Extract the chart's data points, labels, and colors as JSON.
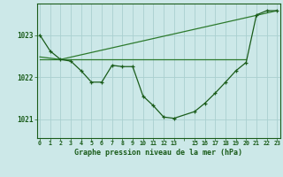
{
  "bg_color": "#cce8e8",
  "grid_color": "#aad0d0",
  "line_color": "#1a5c1a",
  "line_color2": "#2d7a2d",
  "xlabel": "Graphe pression niveau de la mer (hPa)",
  "yticks": [
    1021,
    1022,
    1023
  ],
  "xtick_labels": [
    "0",
    "1",
    "2",
    "3",
    "4",
    "5",
    "6",
    "7",
    "8",
    "9",
    "10",
    "11",
    "12",
    "13",
    "",
    "15",
    "16",
    "17",
    "18",
    "19",
    "20",
    "21",
    "22",
    "23"
  ],
  "xtick_positions": [
    0,
    1,
    2,
    3,
    4,
    5,
    6,
    7,
    8,
    9,
    10,
    11,
    12,
    13,
    14,
    15,
    16,
    17,
    18,
    19,
    20,
    21,
    22,
    23
  ],
  "xlim": [
    -0.3,
    23.3
  ],
  "ylim": [
    1020.55,
    1023.75
  ],
  "series1_x": [
    0,
    1,
    2,
    3,
    4,
    5,
    6,
    7,
    8,
    9,
    10,
    11,
    12,
    13,
    15,
    16,
    17,
    18,
    19,
    20,
    21,
    22,
    23
  ],
  "series1_y": [
    1023.0,
    1022.62,
    1022.42,
    1022.38,
    1022.15,
    1021.88,
    1021.88,
    1022.28,
    1022.25,
    1022.25,
    1021.55,
    1021.32,
    1021.05,
    1021.02,
    1021.18,
    1021.38,
    1021.62,
    1021.88,
    1022.15,
    1022.35,
    1023.48,
    1023.58,
    1023.58
  ],
  "series2_x": [
    0,
    2,
    23
  ],
  "series2_y": [
    1022.48,
    1022.42,
    1023.58
  ],
  "series3_x": [
    0,
    20
  ],
  "series3_y": [
    1022.42,
    1022.42
  ]
}
